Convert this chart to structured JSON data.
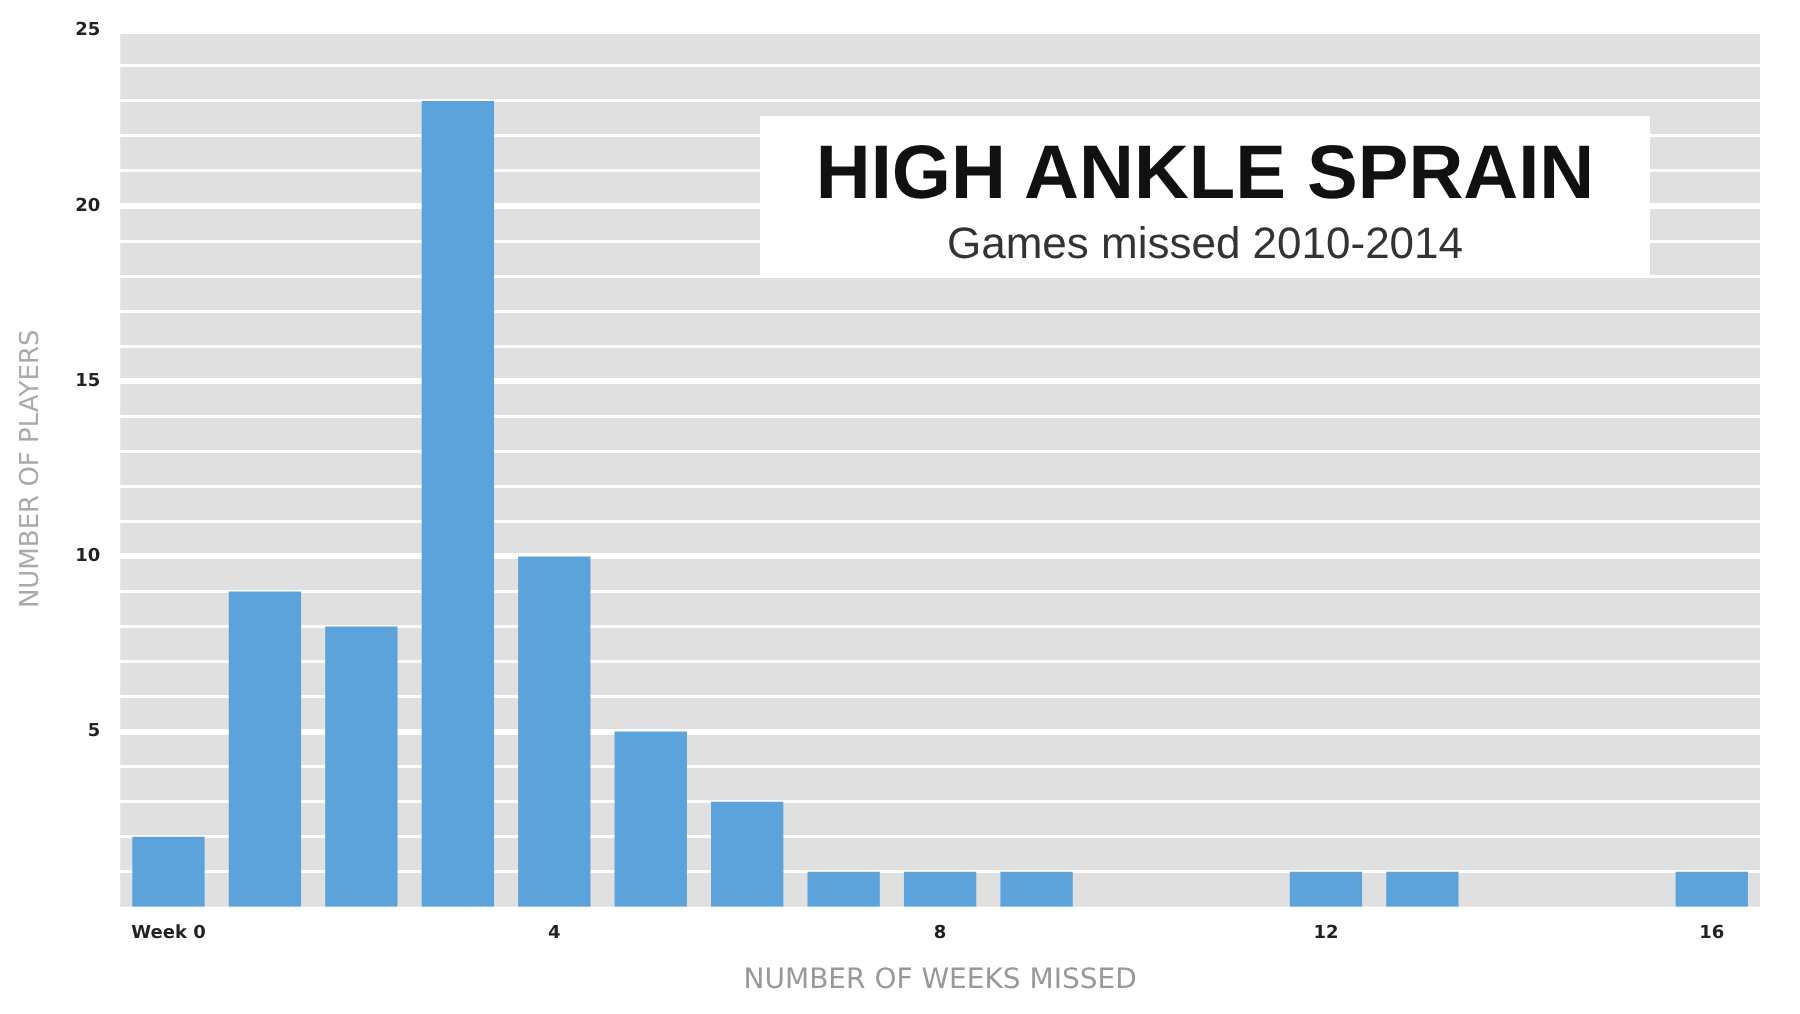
{
  "chart_data": {
    "type": "bar",
    "title": "HIGH ANKLE SPRAIN",
    "subtitle": "Games missed 2010-2014",
    "xlabel": "NUMBER OF WEEKS MISSED",
    "ylabel": "NUMBER OF PLAYERS",
    "categories": [
      "Week 0",
      null,
      null,
      null,
      "4",
      null,
      null,
      null,
      "8",
      null,
      null,
      null,
      "12",
      null,
      null,
      null,
      "16"
    ],
    "values": [
      2,
      9,
      8,
      23,
      10,
      5,
      3,
      1,
      1,
      1,
      0,
      0,
      1,
      1,
      0,
      0,
      1
    ],
    "color": "#5ba3da",
    "ylim": [
      0,
      25
    ],
    "yticks": [
      {
        "value": 1,
        "label": null
      },
      {
        "value": 2,
        "label": null
      },
      {
        "value": 3,
        "label": null
      },
      {
        "value": 4,
        "label": null
      },
      5,
      {
        "value": 6,
        "label": null
      },
      {
        "value": 7,
        "label": null
      },
      {
        "value": 8,
        "label": null
      },
      {
        "value": 9,
        "label": null
      },
      10,
      {
        "value": 11,
        "label": null
      },
      {
        "value": 12,
        "label": null
      },
      {
        "value": 13,
        "label": null
      },
      {
        "value": 14,
        "label": null
      },
      15,
      {
        "value": 16,
        "label": null
      },
      {
        "value": 17,
        "label": null
      },
      {
        "value": 18,
        "label": null
      },
      {
        "value": 19,
        "label": null
      },
      20,
      {
        "value": 21,
        "label": null
      },
      {
        "value": 22,
        "label": null
      },
      {
        "value": 23,
        "label": null
      },
      {
        "value": 24,
        "label": null
      },
      25
    ],
    "grid": "y"
  }
}
